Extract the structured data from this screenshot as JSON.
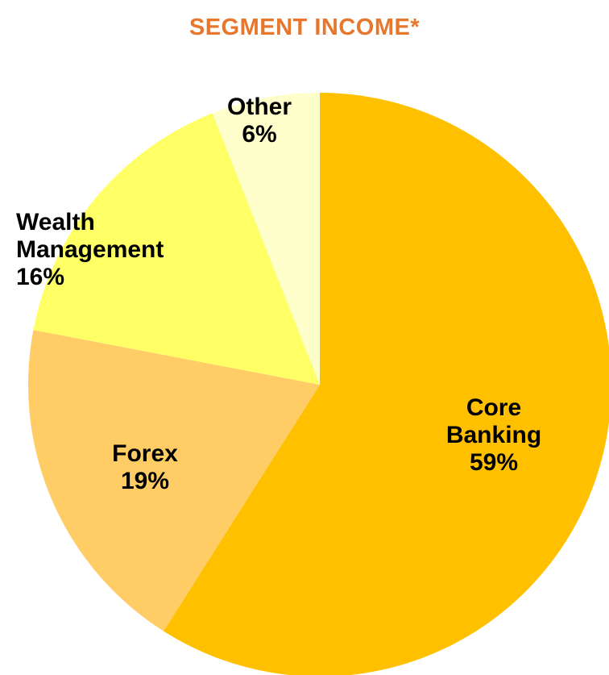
{
  "chart_data": {
    "type": "pie",
    "title": "SEGMENT INCOME*",
    "categories": [
      "Core Banking",
      "Forex",
      "Wealth Management",
      "Other"
    ],
    "values": [
      59,
      19,
      16,
      6
    ],
    "value_labels": [
      "59%",
      "19%",
      "16%",
      "6%"
    ],
    "colors": [
      "#FFC000",
      "#FFCC66",
      "#FFFF66",
      "#FFFFCC"
    ]
  }
}
